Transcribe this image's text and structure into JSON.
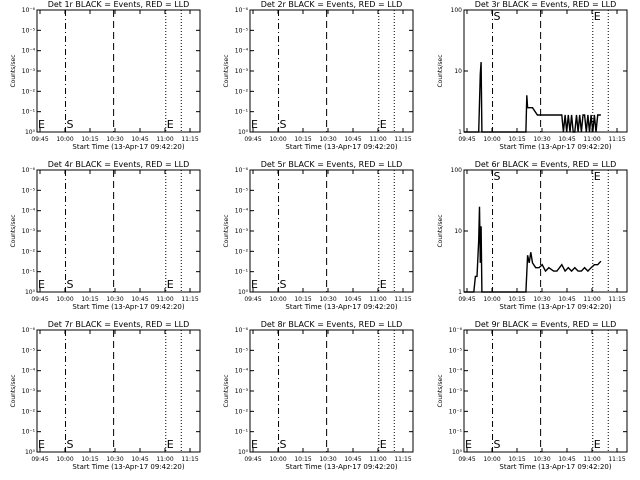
{
  "chart_data": [
    {
      "type": "line",
      "title": "Det 1r BLACK = Events, RED = LLD",
      "xlabel": "Start Time (13-Apr-17 09:42:20)",
      "ylabel": "Counts/sec",
      "yscale": "log",
      "yticks": [
        "10⁰",
        "10⁻¹",
        "10⁻²",
        "10⁻³",
        "10⁻⁴",
        "10⁻⁵",
        "10⁻⁶"
      ],
      "xticks": [
        "09:45",
        "10:00",
        "10:15",
        "10:30",
        "10:45",
        "11:00",
        "11:15"
      ],
      "markers": {
        "start": "S",
        "end": "E"
      },
      "series": []
    },
    {
      "type": "line",
      "title": "Det 2r BLACK = Events, RED = LLD",
      "xlabel": "Start Time (13-Apr-17 09:42:20)",
      "ylabel": "Counts/sec",
      "yscale": "log",
      "yticks": [
        "10⁰",
        "10⁻¹",
        "10⁻²",
        "10⁻³",
        "10⁻⁴",
        "10⁻⁵",
        "10⁻⁶"
      ],
      "xticks": [
        "09:45",
        "10:00",
        "10:15",
        "10:30",
        "10:45",
        "11:00",
        "11:15"
      ],
      "markers": {
        "start": "S",
        "end": "E"
      },
      "series": []
    },
    {
      "type": "line",
      "title": "Det 3r BLACK = Events, RED = LLD",
      "xlabel": "Start Time (13-Apr-17 09:42:20)",
      "ylabel": "Counts/sec",
      "yscale": "log",
      "yticks": [
        "1",
        "10",
        "100"
      ],
      "xticks": [
        "09:45",
        "10:00",
        "10:15",
        "10:30",
        "10:45",
        "11:00",
        "11:15"
      ],
      "markers": {
        "start": "S",
        "end": "E"
      },
      "series": [
        {
          "x": [
            0.0,
            0.05,
            0.09,
            0.095,
            0.1,
            0.105,
            0.11,
            0.12,
            0.38,
            0.385,
            0.39,
            0.42,
            0.45,
            0.46,
            0.6,
            0.61,
            0.62,
            0.63,
            0.64,
            0.65,
            0.66,
            0.67,
            0.68,
            0.69,
            0.7,
            0.71,
            0.72,
            0.73,
            0.74,
            0.75,
            0.76,
            0.77,
            0.78,
            0.79,
            0.8,
            0.81,
            0.82,
            0.83,
            0.84
          ],
          "y": [
            1,
            1,
            1,
            3,
            9,
            14,
            1,
            1,
            1,
            4,
            2.5,
            2.5,
            1.9,
            1.9,
            1.9,
            1,
            1.9,
            1,
            1.9,
            1,
            1.9,
            1,
            1,
            1.9,
            1,
            1.9,
            1,
            1.9,
            1.9,
            1,
            1.9,
            1,
            1.9,
            1,
            1.9,
            1,
            1.9,
            1.9,
            1.9
          ]
        }
      ]
    },
    {
      "type": "line",
      "title": "Det 4r BLACK = Events, RED = LLD",
      "xlabel": "Start Time (13-Apr-17 09:42:20)",
      "ylabel": "Counts/sec",
      "yscale": "log",
      "yticks": [
        "10⁰",
        "10⁻¹",
        "10⁻²",
        "10⁻³",
        "10⁻⁴",
        "10⁻⁵",
        "10⁻⁶"
      ],
      "xticks": [
        "09:45",
        "10:00",
        "10:15",
        "10:30",
        "10:45",
        "11:00",
        "11:15"
      ],
      "markers": {
        "start": "S",
        "end": "E"
      },
      "series": []
    },
    {
      "type": "line",
      "title": "Det 5r BLACK = Events, RED = LLD",
      "xlabel": "Start Time (13-Apr-17 09:42:20)",
      "ylabel": "Counts/sec",
      "yscale": "log",
      "yticks": [
        "10⁰",
        "10⁻¹",
        "10⁻²",
        "10⁻³",
        "10⁻⁴",
        "10⁻⁵",
        "10⁻⁶"
      ],
      "xticks": [
        "09:45",
        "10:00",
        "10:15",
        "10:30",
        "10:45",
        "11:00",
        "11:15"
      ],
      "markers": {
        "start": "S",
        "end": "E"
      },
      "series": []
    },
    {
      "type": "line",
      "title": "Det 6r BLACK = Events, RED = LLD",
      "xlabel": "Start Time (13-Apr-17 09:42:20)",
      "ylabel": "Counts/sec",
      "yscale": "log",
      "yticks": [
        "1",
        "10",
        "100"
      ],
      "xticks": [
        "09:45",
        "10:00",
        "10:15",
        "10:30",
        "10:45",
        "11:00",
        "11:15"
      ],
      "markers": {
        "start": "S",
        "end": "E"
      },
      "series": [
        {
          "x": [
            0.0,
            0.06,
            0.07,
            0.08,
            0.09,
            0.095,
            0.1,
            0.105,
            0.11,
            0.12,
            0.38,
            0.39,
            0.4,
            0.41,
            0.42,
            0.44,
            0.46,
            0.48,
            0.5,
            0.52,
            0.55,
            0.57,
            0.6,
            0.62,
            0.64,
            0.66,
            0.68,
            0.7,
            0.72,
            0.74,
            0.76,
            0.78,
            0.8,
            0.82,
            0.84
          ],
          "y": [
            1,
            1,
            1.8,
            1.8,
            7,
            25,
            3,
            12,
            1,
            1,
            1,
            4,
            3,
            4.5,
            3,
            2.5,
            2.5,
            2.8,
            2.2,
            2.5,
            2.2,
            2.2,
            2.8,
            2.2,
            2.5,
            2.2,
            2.5,
            2.2,
            2.2,
            2.5,
            2.2,
            2.5,
            2.8,
            2.8,
            3.2
          ]
        }
      ]
    },
    {
      "type": "line",
      "title": "Det 7r BLACK = Events, RED = LLD",
      "xlabel": "Start Time (13-Apr-17 09:42:20)",
      "ylabel": "Counts/sec",
      "yscale": "log",
      "yticks": [
        "10⁰",
        "10⁻¹",
        "10⁻²",
        "10⁻³",
        "10⁻⁴",
        "10⁻⁵",
        "10⁻⁶"
      ],
      "xticks": [
        "09:45",
        "10:00",
        "10:15",
        "10:30",
        "10:45",
        "11:00",
        "11:15"
      ],
      "markers": {
        "start": "S",
        "end": "E"
      },
      "series": []
    },
    {
      "type": "line",
      "title": "Det 8r BLACK = Events, RED = LLD",
      "xlabel": "Start Time (13-Apr-17 09:42:20)",
      "ylabel": "Counts/sec",
      "yscale": "log",
      "yticks": [
        "10⁰",
        "10⁻¹",
        "10⁻²",
        "10⁻³",
        "10⁻⁴",
        "10⁻⁵",
        "10⁻⁶"
      ],
      "xticks": [
        "09:45",
        "10:00",
        "10:15",
        "10:30",
        "10:45",
        "11:00",
        "11:15"
      ],
      "markers": {
        "start": "S",
        "end": "E"
      },
      "series": []
    },
    {
      "type": "line",
      "title": "Det 9r BLACK = Events, RED = LLD",
      "xlabel": "Start Time (13-Apr-17 09:42:20)",
      "ylabel": "Counts/sec",
      "yscale": "log",
      "yticks": [
        "10⁰",
        "10⁻¹",
        "10⁻²",
        "10⁻³",
        "10⁻⁴",
        "10⁻⁵",
        "10⁻⁶"
      ],
      "xticks": [
        "09:45",
        "10:00",
        "10:15",
        "10:30",
        "10:45",
        "11:00",
        "11:15"
      ],
      "markers": {
        "start": "S",
        "end": "E"
      },
      "series": []
    }
  ]
}
